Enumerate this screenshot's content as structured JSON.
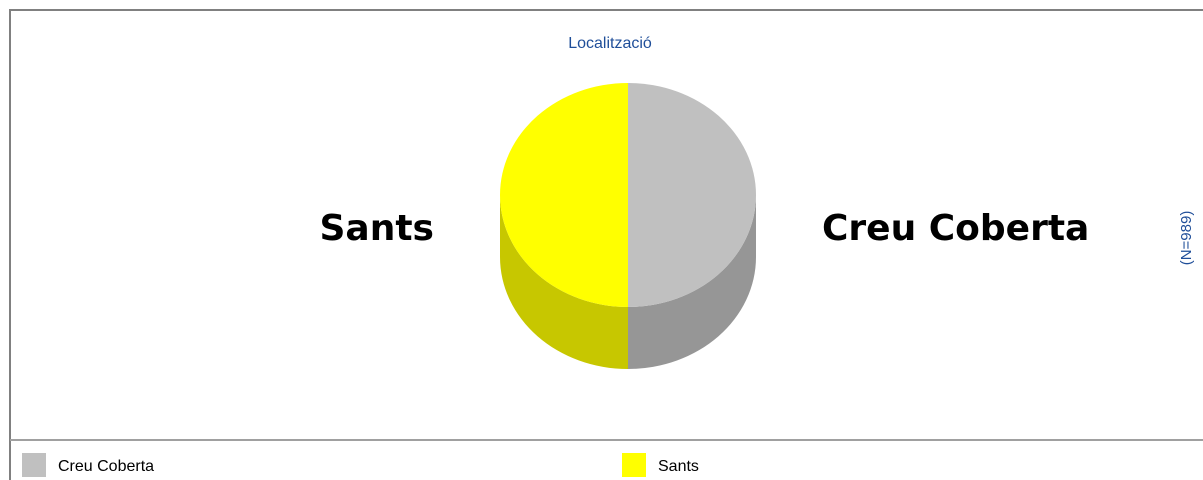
{
  "chart_data": {
    "type": "pie",
    "title": "Localització",
    "annotation": "(N=989)",
    "categories": [
      "Creu Coberta",
      "Sants"
    ],
    "values": [
      50,
      50
    ],
    "colors": [
      "#c0c0c0",
      "#ffff00"
    ],
    "legend": "bottom"
  }
}
